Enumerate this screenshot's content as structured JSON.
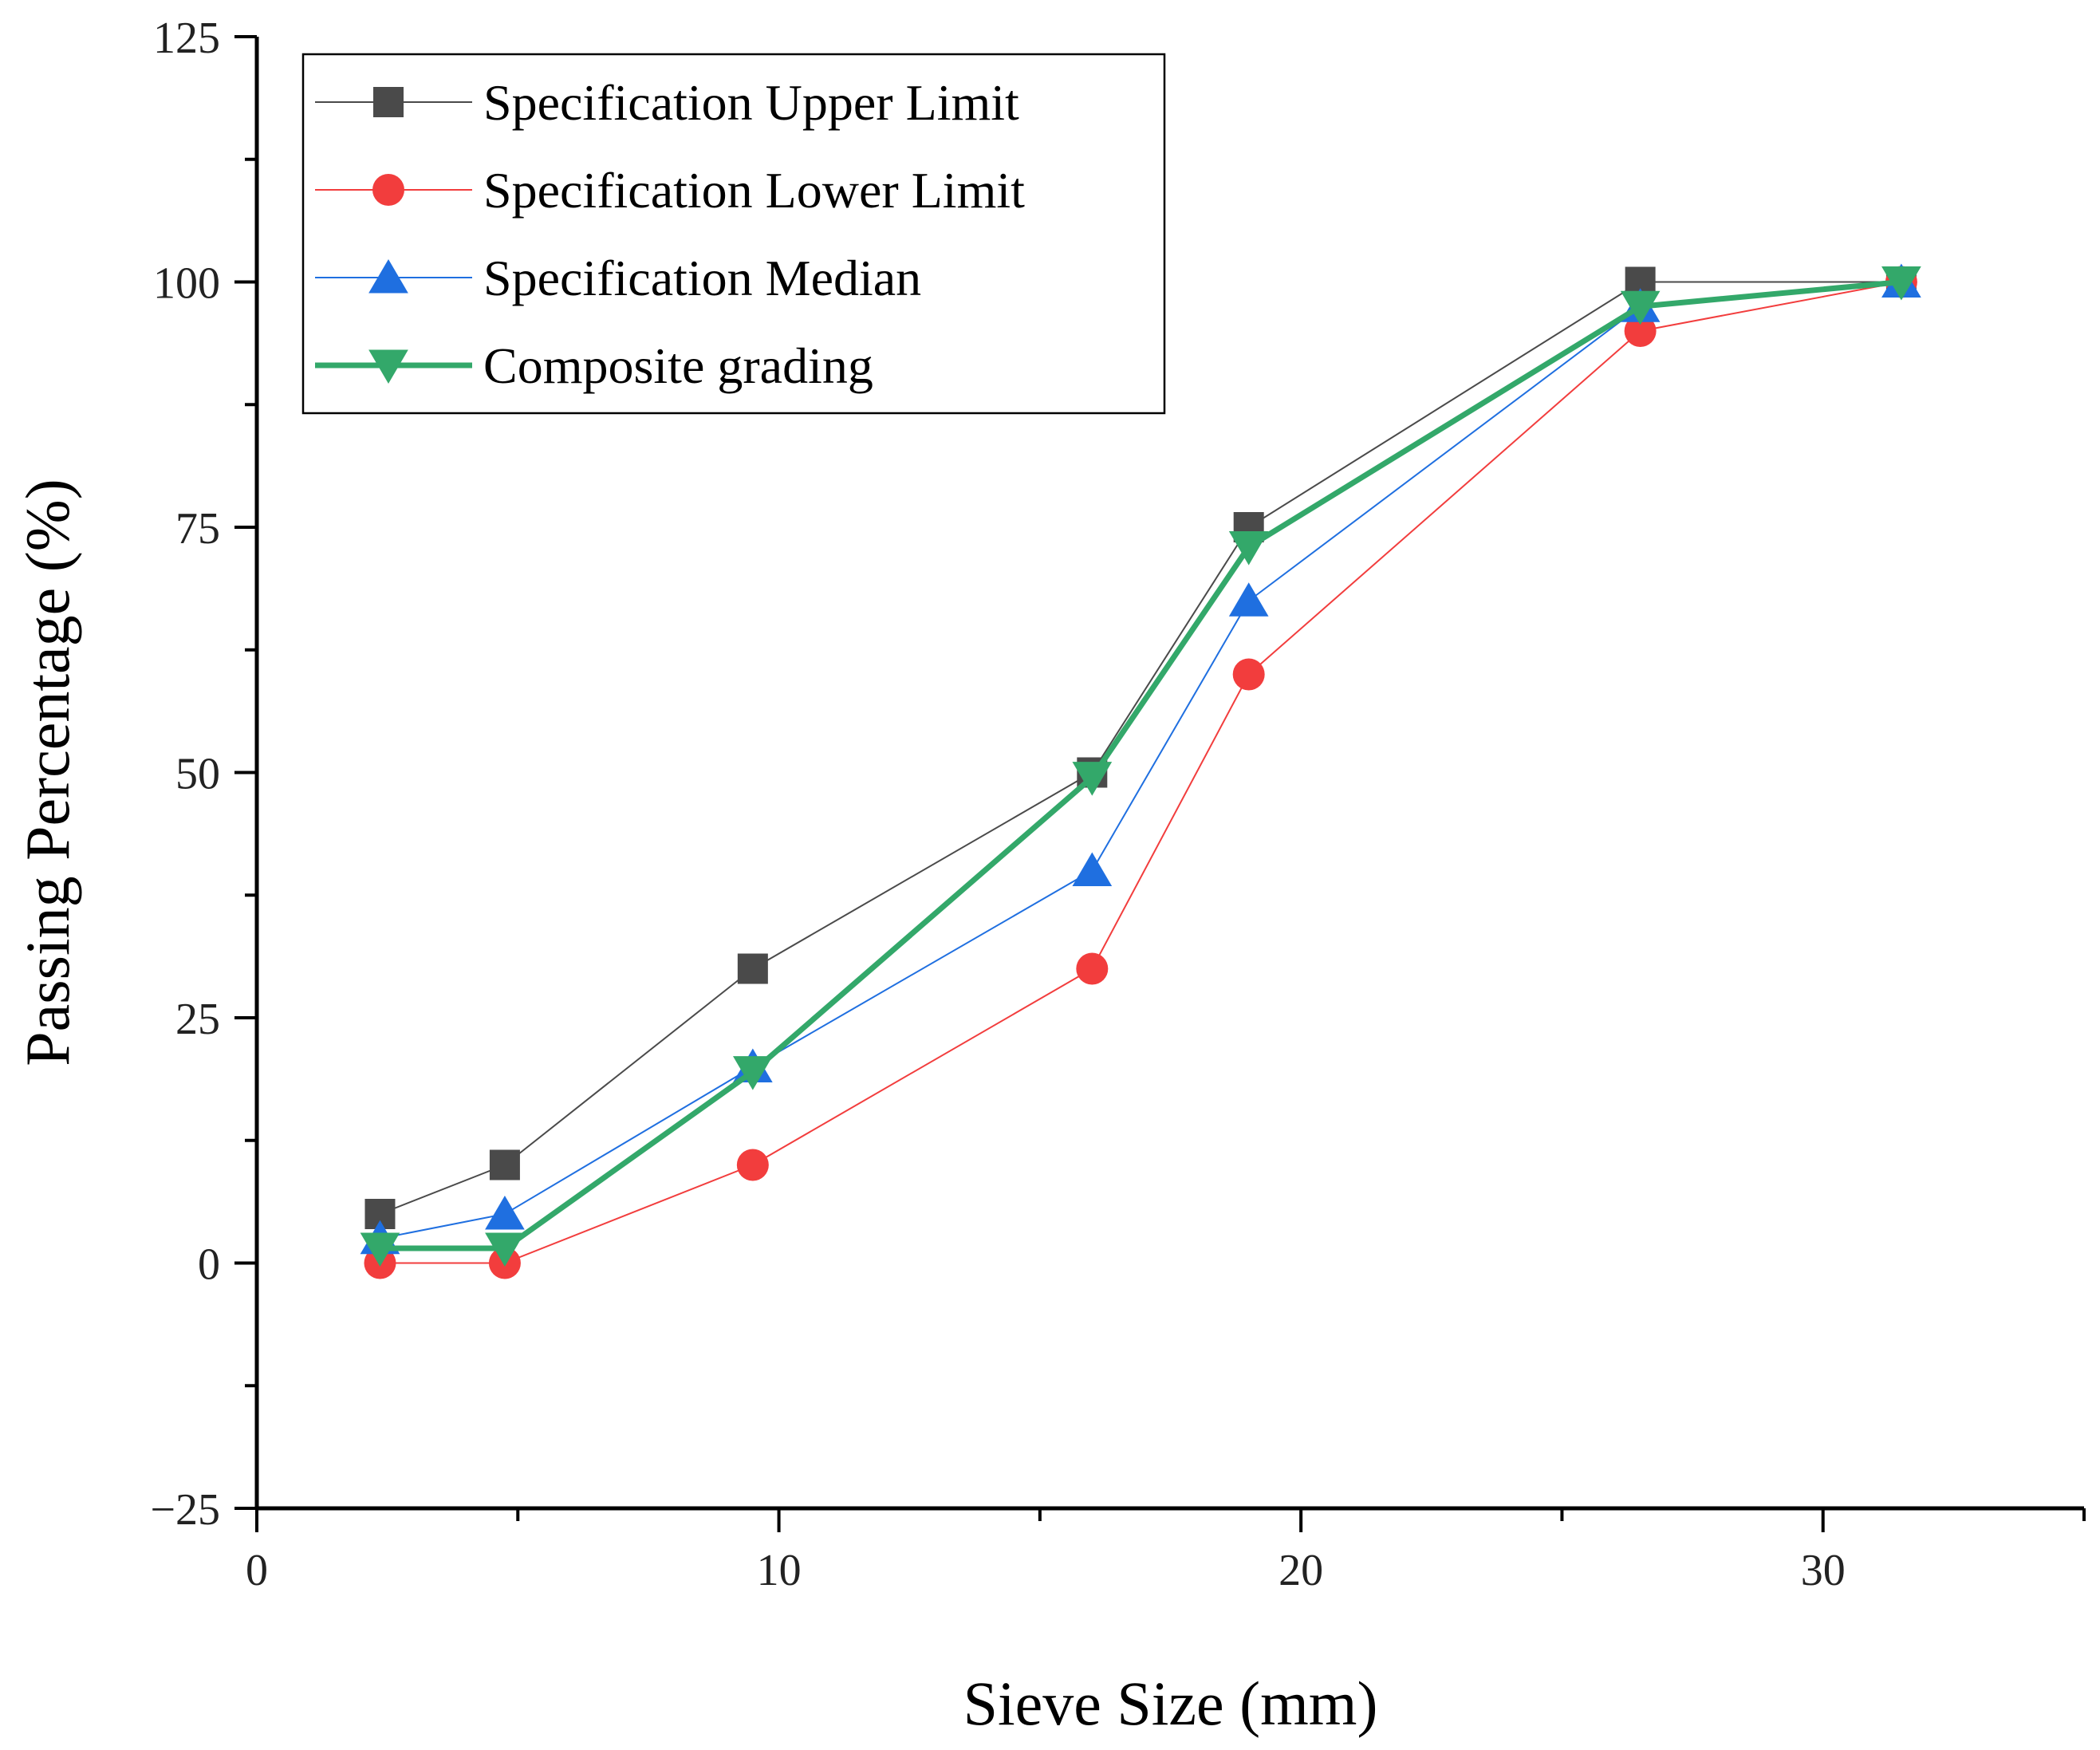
{
  "chart_data": {
    "type": "line",
    "xlabel": "Sieve Size (mm)",
    "ylabel": "Passing Percentage (%)",
    "xlim": [
      0,
      35
    ],
    "ylim": [
      -25,
      125
    ],
    "x_ticks": [
      0,
      10,
      20,
      30
    ],
    "x_minor_ticks": [
      5,
      15,
      25,
      35
    ],
    "y_ticks": [
      -25,
      0,
      25,
      50,
      75,
      100,
      125
    ],
    "y_minor_ticks": [
      -12.5,
      12.5,
      37.5,
      62.5,
      87.5,
      112.5
    ],
    "x_tick_labels": [
      "0",
      "10",
      "20",
      "30"
    ],
    "y_tick_labels": [
      "−25",
      "0",
      "25",
      "50",
      "75",
      "100",
      "125"
    ],
    "x": [
      2.36,
      4.75,
      9.5,
      16,
      19,
      26.5,
      31.5
    ],
    "grid": false,
    "legend_position": "top-left",
    "series": [
      {
        "name": "Specification Upper Limit",
        "values": [
          5,
          10,
          30,
          50,
          75,
          100,
          100
        ],
        "color": "#4a4a4a",
        "marker": "square",
        "line_weight": "thin"
      },
      {
        "name": "Specification Lower Limit",
        "values": [
          0,
          0,
          10,
          30,
          60,
          95,
          100
        ],
        "color": "#f23d3d",
        "marker": "circle",
        "line_weight": "thin"
      },
      {
        "name": "Specification Median",
        "values": [
          2.5,
          5,
          20,
          40,
          67.5,
          97.5,
          100
        ],
        "color": "#1f6fe0",
        "marker": "triangle-up",
        "line_weight": "thin"
      },
      {
        "name": "Composite grading",
        "values": [
          1.5,
          1.5,
          19.5,
          49.5,
          73,
          97.5,
          100
        ],
        "color": "#33a86a",
        "marker": "triangle-down",
        "line_weight": "thick"
      }
    ]
  }
}
